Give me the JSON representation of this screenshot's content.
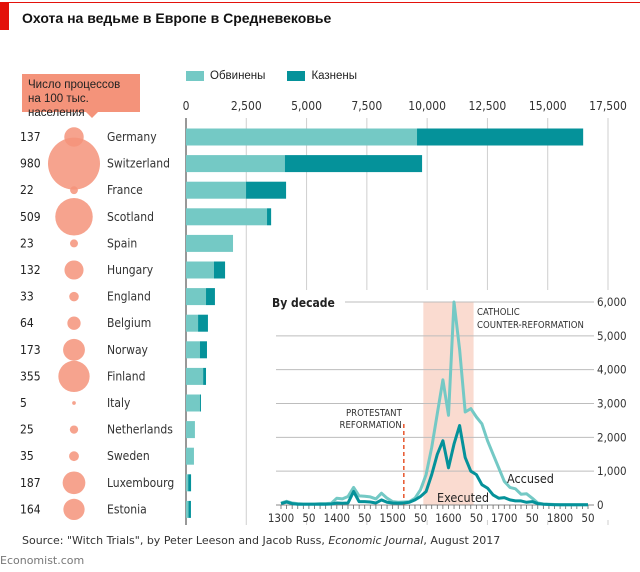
{
  "header": {
    "title": "Охота на ведьме в Европе в Средневековье"
  },
  "callout": {
    "text": "Число процессов на 100 тыс. населения"
  },
  "legend": {
    "accused_label": "Обвинены",
    "executed_label": "Казнены",
    "accused_color": "#74c9c5",
    "executed_color": "#05929a"
  },
  "colors": {
    "bubble": "#f4937a",
    "shade": "#fadbd0",
    "dash": "#e8603a",
    "brand_red": "#e3120b"
  },
  "chart_data": [
    {
      "type": "bar",
      "orientation": "horizontal",
      "stacked": true,
      "title": "",
      "xlim": [
        0,
        17500
      ],
      "xticks": [
        0,
        2500,
        5000,
        7500,
        10000,
        12500,
        15000,
        17500
      ],
      "xtick_labels": [
        "0",
        "2,500",
        "5,000",
        "7,500",
        "10,000",
        "12,500",
        "15,000",
        "17,500"
      ],
      "grid": true,
      "legend_position": "top-left",
      "categories": [
        "Germany",
        "Switzerland",
        "France",
        "Scotland",
        "Spain",
        "Hungary",
        "England",
        "Belgium",
        "Norway",
        "Finland",
        "Italy",
        "Netherlands",
        "Sweden",
        "Luxembourg",
        "Estonia"
      ],
      "per_100k": [
        137,
        980,
        22,
        509,
        23,
        132,
        33,
        64,
        173,
        355,
        5,
        25,
        35,
        187,
        164
      ],
      "series": [
        {
          "name": "Обвинены",
          "values": [
            16470,
            9790,
            4150,
            3530,
            1950,
            1620,
            1200,
            910,
            870,
            830,
            620,
            370,
            330,
            210,
            205
          ]
        },
        {
          "name": "Казнены",
          "values": [
            6890,
            5690,
            1660,
            170,
            0,
            460,
            370,
            410,
            290,
            120,
            40,
            0,
            0,
            120,
            100
          ]
        }
      ]
    },
    {
      "type": "line",
      "title": "By decade",
      "xlim": [
        1300,
        1850
      ],
      "ylim": [
        0,
        6000
      ],
      "yticks": [
        0,
        1000,
        2000,
        3000,
        4000,
        5000,
        6000
      ],
      "ytick_labels": [
        "0",
        "1,000",
        "2,000",
        "3,000",
        "4,000",
        "5,000",
        "6,000"
      ],
      "xtick_labels": [
        "1300",
        "50",
        "1400",
        "50",
        "1500",
        "50",
        "1600",
        "50",
        "1700",
        "50",
        "1800",
        "50"
      ],
      "xticks": [
        1300,
        1350,
        1400,
        1450,
        1500,
        1550,
        1600,
        1650,
        1700,
        1750,
        1800,
        1850
      ],
      "grid": true,
      "x": [
        1300,
        1310,
        1320,
        1330,
        1340,
        1350,
        1360,
        1370,
        1380,
        1390,
        1400,
        1410,
        1420,
        1430,
        1440,
        1450,
        1460,
        1470,
        1480,
        1490,
        1500,
        1510,
        1520,
        1530,
        1540,
        1550,
        1560,
        1570,
        1580,
        1590,
        1600,
        1610,
        1620,
        1630,
        1640,
        1650,
        1660,
        1670,
        1680,
        1690,
        1700,
        1710,
        1720,
        1730,
        1740,
        1750,
        1760,
        1770,
        1780,
        1790,
        1800,
        1810,
        1820,
        1830,
        1840,
        1850
      ],
      "series": [
        {
          "name": "Accused",
          "values": [
            60,
            110,
            60,
            40,
            30,
            30,
            30,
            40,
            40,
            50,
            200,
            180,
            250,
            520,
            270,
            260,
            240,
            180,
            350,
            200,
            100,
            80,
            90,
            100,
            200,
            450,
            900,
            1700,
            2700,
            3700,
            2650,
            6000,
            4600,
            2750,
            2850,
            2600,
            2400,
            1900,
            1500,
            1100,
            700,
            520,
            480,
            320,
            330,
            200,
            60,
            30,
            20,
            15,
            10,
            10,
            10,
            10,
            10,
            5
          ]
        },
        {
          "name": "Executed",
          "values": [
            40,
            90,
            40,
            25,
            20,
            20,
            20,
            25,
            25,
            30,
            60,
            50,
            60,
            400,
            100,
            100,
            90,
            60,
            150,
            80,
            60,
            50,
            60,
            80,
            150,
            250,
            400,
            900,
            1500,
            1900,
            1100,
            1800,
            2350,
            1400,
            1000,
            900,
            600,
            500,
            300,
            200,
            220,
            150,
            120,
            120,
            80,
            100,
            40,
            20,
            15,
            10,
            10,
            10,
            10,
            10,
            10,
            5
          ]
        }
      ],
      "annotations": {
        "protestant": {
          "text_line1": "PROTESTANT",
          "text_line2": "REFORMATION",
          "year": 1520
        },
        "catholic": {
          "text_line1": "CATHOLIC",
          "text_line2": "COUNTER-REFORMATION",
          "from": 1555,
          "to": 1645
        },
        "accused_label": "Accused",
        "executed_label": "Executed"
      }
    }
  ],
  "footer": {
    "source_prefix": "Source: \"Witch Trials\", by Peter Leeson and Jacob Russ, ",
    "source_journal": "Economic Journal",
    "source_suffix": ", August 2017",
    "brand": "Economist.com"
  }
}
